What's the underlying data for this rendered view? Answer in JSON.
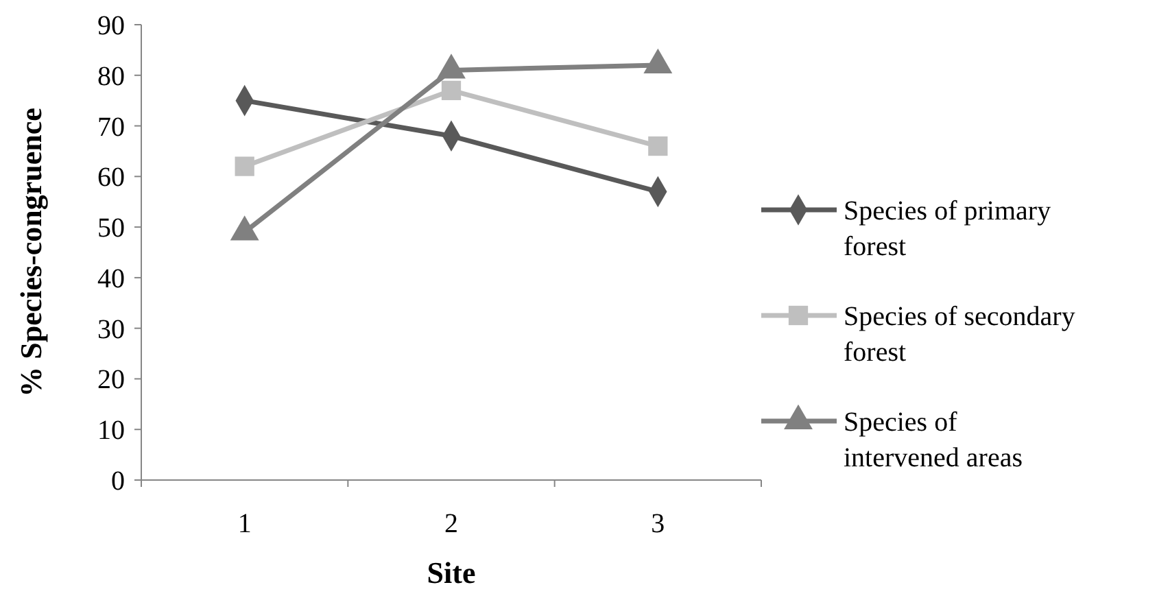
{
  "chart_data": {
    "type": "line",
    "xlabel": "Site",
    "ylabel": "% Species-congruence",
    "categories": [
      "1",
      "2",
      "3"
    ],
    "ylim": [
      0,
      90
    ],
    "yticks": [
      0,
      10,
      20,
      30,
      40,
      50,
      60,
      70,
      80,
      90
    ],
    "grid": false,
    "legend": "right",
    "series": [
      {
        "name": "Species of primary forest",
        "color": "#595959",
        "marker": "diamond",
        "values": [
          75,
          68,
          57
        ]
      },
      {
        "name": "Species of secondary forest",
        "color": "#bfbfbf",
        "marker": "square",
        "values": [
          62,
          77,
          66
        ]
      },
      {
        "name": "Species of intervened areas",
        "color": "#808080",
        "marker": "triangle",
        "values": [
          49,
          81,
          82
        ]
      }
    ]
  }
}
